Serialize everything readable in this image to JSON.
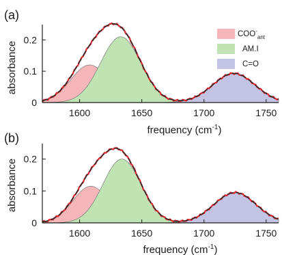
{
  "figure": {
    "panels": [
      "(a)",
      "(b)"
    ]
  },
  "chart_data": [
    {
      "panel_label": "(a)",
      "type": "area",
      "xlabel": "frequency (cm^-1)",
      "xlabel_base": "frequency (cm",
      "xlabel_sup": "-1",
      "xlabel_end": ")",
      "ylabel": "absorbance",
      "xlim": [
        1570,
        1760
      ],
      "ylim": [
        0,
        0.24
      ],
      "xticks": [
        1600,
        1650,
        1700,
        1750
      ],
      "xticklabels": [
        "1600",
        "1650",
        "1700",
        "1750"
      ],
      "yticks": [
        0,
        0.1,
        0.2
      ],
      "yticklabels": [
        "0",
        "0.1",
        "0.2"
      ],
      "legend": {
        "placement": "top-right"
      },
      "series": [
        {
          "name": "COO⁻ant",
          "name_base": "COO",
          "name_sup": "-",
          "name_sub": "ant",
          "color": "#f4b6b8",
          "shape": "gaussian",
          "center": 1608,
          "height": 0.12,
          "fwhm": 36
        },
        {
          "name": "AM.I",
          "color": "#bfe3b3",
          "shape": "gaussian",
          "center": 1633,
          "height": 0.21,
          "fwhm": 38
        },
        {
          "name": "C=O",
          "color": "#c3c3e3",
          "shape": "gaussian",
          "center": 1724,
          "height": 0.093,
          "fwhm": 40
        }
      ],
      "fit_curve": {
        "label": "sum",
        "color": "#2b2b2b",
        "dashed": true
      },
      "data_curve": {
        "color": "#e0252b"
      }
    },
    {
      "panel_label": "(b)",
      "type": "area",
      "xlabel": "frequency (cm^-1)",
      "xlabel_base": "frequency (cm",
      "xlabel_sup": "-1",
      "xlabel_end": ")",
      "ylabel": "absorbance",
      "xlim": [
        1570,
        1760
      ],
      "ylim": [
        0,
        0.24
      ],
      "xticks": [
        1600,
        1650,
        1700,
        1750
      ],
      "xticklabels": [
        "1600",
        "1650",
        "1700",
        "1750"
      ],
      "yticks": [
        0,
        0.1,
        0.2
      ],
      "yticklabels": [
        "0",
        "0.1",
        "0.2"
      ],
      "series": [
        {
          "name": "COO⁻ant",
          "color": "#f4b6b8",
          "shape": "gaussian",
          "center": 1609,
          "height": 0.115,
          "fwhm": 34
        },
        {
          "name": "AM.I",
          "color": "#bfe3b3",
          "shape": "gaussian",
          "center": 1634,
          "height": 0.2,
          "fwhm": 36
        },
        {
          "name": "C=O",
          "color": "#c3c3e3",
          "shape": "gaussian",
          "center": 1725,
          "height": 0.095,
          "fwhm": 40
        }
      ],
      "fit_curve": {
        "label": "sum",
        "color": "#2b2b2b",
        "dashed": true
      },
      "data_curve": {
        "color": "#e0252b"
      }
    }
  ]
}
